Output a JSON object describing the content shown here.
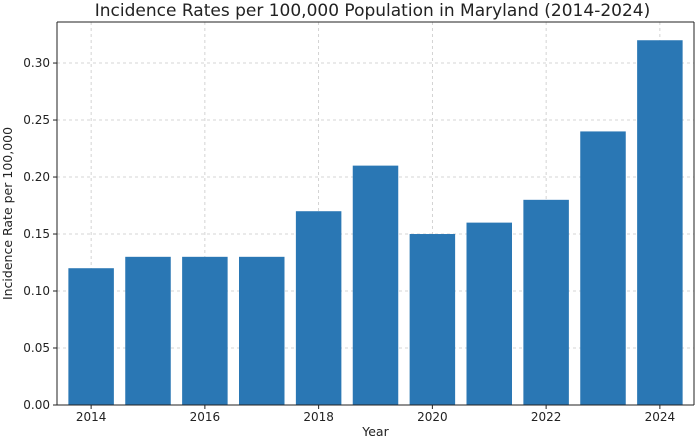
{
  "chart_data": {
    "type": "bar",
    "title": "Incidence Rates per 100,000 Population in Maryland (2014-2024)",
    "xlabel": "Year",
    "ylabel": "Incidence Rate per 100,000",
    "categories": [
      2014,
      2015,
      2016,
      2017,
      2018,
      2019,
      2020,
      2021,
      2022,
      2023,
      2024
    ],
    "values": [
      0.12,
      0.13,
      0.13,
      0.13,
      0.17,
      0.21,
      0.15,
      0.16,
      0.18,
      0.24,
      0.32
    ],
    "ylim": [
      0,
      0.336
    ],
    "xlim": [
      2013.4,
      2024.6
    ],
    "yticks": [
      "0.00",
      "0.05",
      "0.10",
      "0.15",
      "0.20",
      "0.25",
      "0.30"
    ],
    "xticks": [
      "2014",
      "2016",
      "2018",
      "2020",
      "2022",
      "2024"
    ],
    "grid": true,
    "bar_color": "#2a77b4"
  }
}
